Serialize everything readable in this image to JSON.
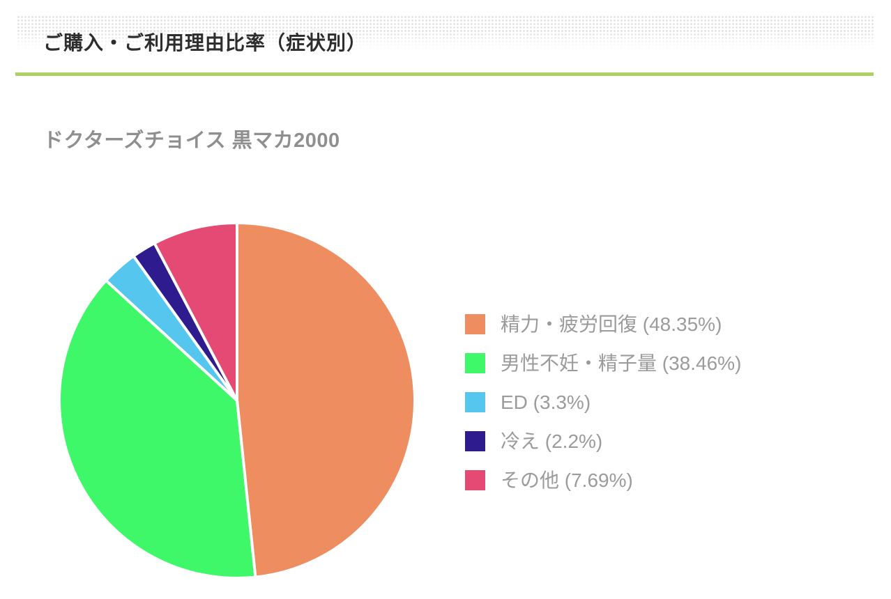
{
  "header": {
    "title": "ご購入・ご利用理由比率（症状別）",
    "rule_color": "#aed064",
    "title_color": "#2d2d2d"
  },
  "chart": {
    "subtitle": "ドクターズチョイス 黒マカ2000",
    "subtitle_color": "#8f8f8f",
    "legend_text_color": "#9b9b9b"
  },
  "chart_data": {
    "type": "pie",
    "title": "ドクターズチョイス 黒マカ2000",
    "start_angle": "12-oclock-clockwise",
    "legend_position": "right",
    "slice_separator_color": "#ffffff",
    "slices": [
      {
        "label": "精力・疲労回復",
        "value": 48.35,
        "percent_label": "48.35%",
        "legend_label": "精力・疲労回復 (48.35%)",
        "color": "#ED8D60"
      },
      {
        "label": "男性不妊・精子量",
        "value": 38.46,
        "percent_label": "38.46%",
        "legend_label": "男性不妊・精子量 (38.46%)",
        "color": "#3FF86A"
      },
      {
        "label": "ED",
        "value": 3.3,
        "percent_label": "3.3%",
        "legend_label": "ED (3.3%)",
        "color": "#55C7EF"
      },
      {
        "label": "冷え",
        "value": 2.2,
        "percent_label": "2.2%",
        "legend_label": "冷え (2.2%)",
        "color": "#2E1B8E"
      },
      {
        "label": "その他",
        "value": 7.69,
        "percent_label": "7.69%",
        "legend_label": "その他 (7.69%)",
        "color": "#E44A73"
      }
    ]
  }
}
